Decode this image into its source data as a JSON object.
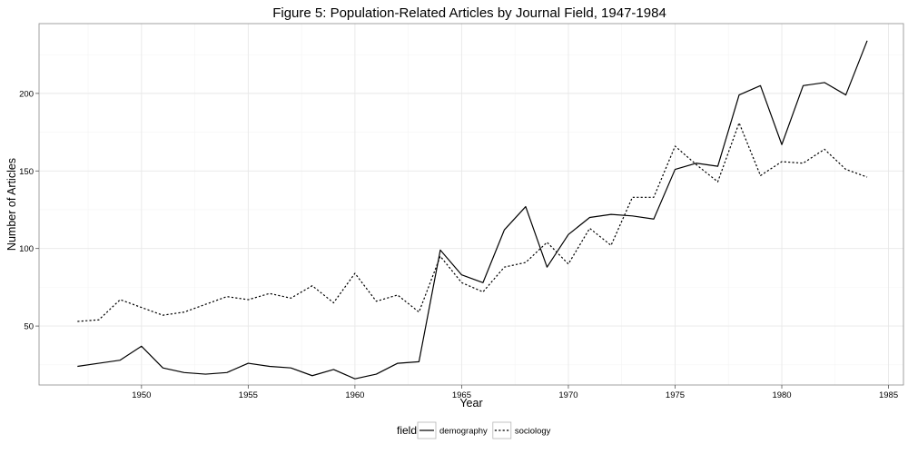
{
  "chart_data": {
    "type": "line",
    "title": "Figure 5: Population-Related Articles by Journal Field, 1947-1984",
    "xlabel": "Year",
    "ylabel": "Number of Articles",
    "xlim": [
      1945.2,
      1985.7
    ],
    "ylim": [
      12,
      245
    ],
    "x_ticks": [
      "1950",
      "1955",
      "1960",
      "1965",
      "1970",
      "1975",
      "1980",
      "1985"
    ],
    "y_ticks": [
      "50",
      "100",
      "150",
      "200"
    ],
    "grid": true,
    "legend": {
      "position": "bottom",
      "title": "field"
    },
    "series": [
      {
        "name": "demography",
        "line_style": "solid",
        "color": "#000000",
        "x": [
          1947,
          1948,
          1949,
          1950,
          1951,
          1952,
          1953,
          1954,
          1955,
          1956,
          1957,
          1958,
          1959,
          1960,
          1961,
          1962,
          1963,
          1964,
          1965,
          1966,
          1967,
          1968,
          1969,
          1970,
          1971,
          1972,
          1973,
          1974,
          1975,
          1976,
          1977,
          1978,
          1979,
          1980,
          1981,
          1982,
          1983,
          1984
        ],
        "values": [
          24,
          26,
          28,
          37,
          23,
          20,
          19,
          20,
          26,
          24,
          23,
          18,
          22,
          16,
          19,
          26,
          27,
          99,
          83,
          78,
          112,
          127,
          88,
          109,
          120,
          122,
          121,
          119,
          151,
          155,
          153,
          199,
          205,
          167,
          205,
          207,
          199,
          234
        ]
      },
      {
        "name": "sociology",
        "line_style": "dotted",
        "color": "#000000",
        "x": [
          1947,
          1948,
          1949,
          1950,
          1951,
          1952,
          1953,
          1954,
          1955,
          1956,
          1957,
          1958,
          1959,
          1960,
          1961,
          1962,
          1963,
          1964,
          1965,
          1966,
          1967,
          1968,
          1969,
          1970,
          1971,
          1972,
          1973,
          1974,
          1975,
          1976,
          1977,
          1978,
          1979,
          1980,
          1981,
          1982,
          1983,
          1984
        ],
        "values": [
          53,
          54,
          67,
          62,
          57,
          59,
          64,
          69,
          67,
          71,
          68,
          76,
          65,
          84,
          66,
          70,
          59,
          95,
          78,
          72,
          88,
          91,
          104,
          90,
          113,
          102,
          133,
          133,
          166,
          154,
          143,
          181,
          147,
          156,
          155,
          164,
          151,
          146
        ]
      }
    ]
  }
}
